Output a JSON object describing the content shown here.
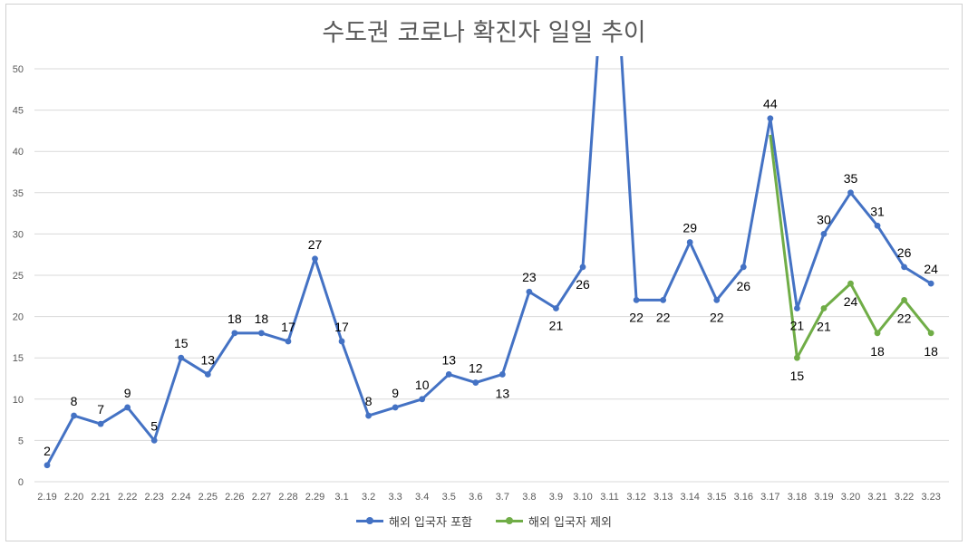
{
  "chart_data": {
    "type": "line",
    "title": "수도권 코로나 확진자 일일 추이",
    "categories": [
      "2.19",
      "2.20",
      "2.21",
      "2.22",
      "2.23",
      "2.24",
      "2.25",
      "2.26",
      "2.27",
      "2.28",
      "2.29",
      "3.1",
      "3.2",
      "3.3",
      "3.4",
      "3.5",
      "3.6",
      "3.7",
      "3.8",
      "3.9",
      "3.10",
      "3.11",
      "3.12",
      "3.13",
      "3.14",
      "3.15",
      "3.16",
      "3.17",
      "3.18",
      "3.19",
      "3.20",
      "3.21",
      "3.22",
      "3.23"
    ],
    "ylim": [
      0,
      50
    ],
    "yticks": [
      0,
      5,
      10,
      15,
      20,
      25,
      30,
      35,
      40,
      45,
      50
    ],
    "grid": true,
    "legend_position": "bottom",
    "series": [
      {
        "name": "해외 입국자 포함",
        "color": "#4472C4",
        "values": [
          2,
          8,
          7,
          9,
          5,
          15,
          13,
          18,
          18,
          17,
          27,
          17,
          8,
          9,
          10,
          13,
          12,
          13,
          23,
          21,
          26,
          null,
          22,
          22,
          29,
          22,
          26,
          44,
          21,
          30,
          35,
          31,
          26,
          24
        ],
        "labels": [
          "2",
          "8",
          "7",
          "9",
          "5",
          "15",
          "13",
          "18",
          "18",
          "17",
          "27",
          "17",
          "8",
          "9",
          "10",
          "13",
          "12",
          "13",
          "23",
          "21",
          "26",
          "",
          "22",
          "22",
          "29",
          "22",
          "26",
          "44",
          "21",
          "30",
          "35",
          "31",
          "26",
          "24"
        ]
      },
      {
        "name": "해외 입국자 제외",
        "color": "#70AD47",
        "values": [
          null,
          null,
          null,
          null,
          null,
          null,
          null,
          null,
          null,
          null,
          null,
          null,
          null,
          null,
          null,
          null,
          null,
          null,
          null,
          null,
          null,
          null,
          null,
          null,
          null,
          null,
          null,
          42,
          15,
          21,
          24,
          18,
          22,
          18
        ],
        "labels": [
          "",
          "",
          "",
          "",
          "",
          "",
          "",
          "",
          "",
          "",
          "",
          "",
          "",
          "",
          "",
          "",
          "",
          "",
          "",
          "",
          "",
          "",
          "",
          "",
          "",
          "",
          "",
          "",
          "15",
          "21",
          "24",
          "18",
          "22",
          "18"
        ]
      }
    ]
  }
}
